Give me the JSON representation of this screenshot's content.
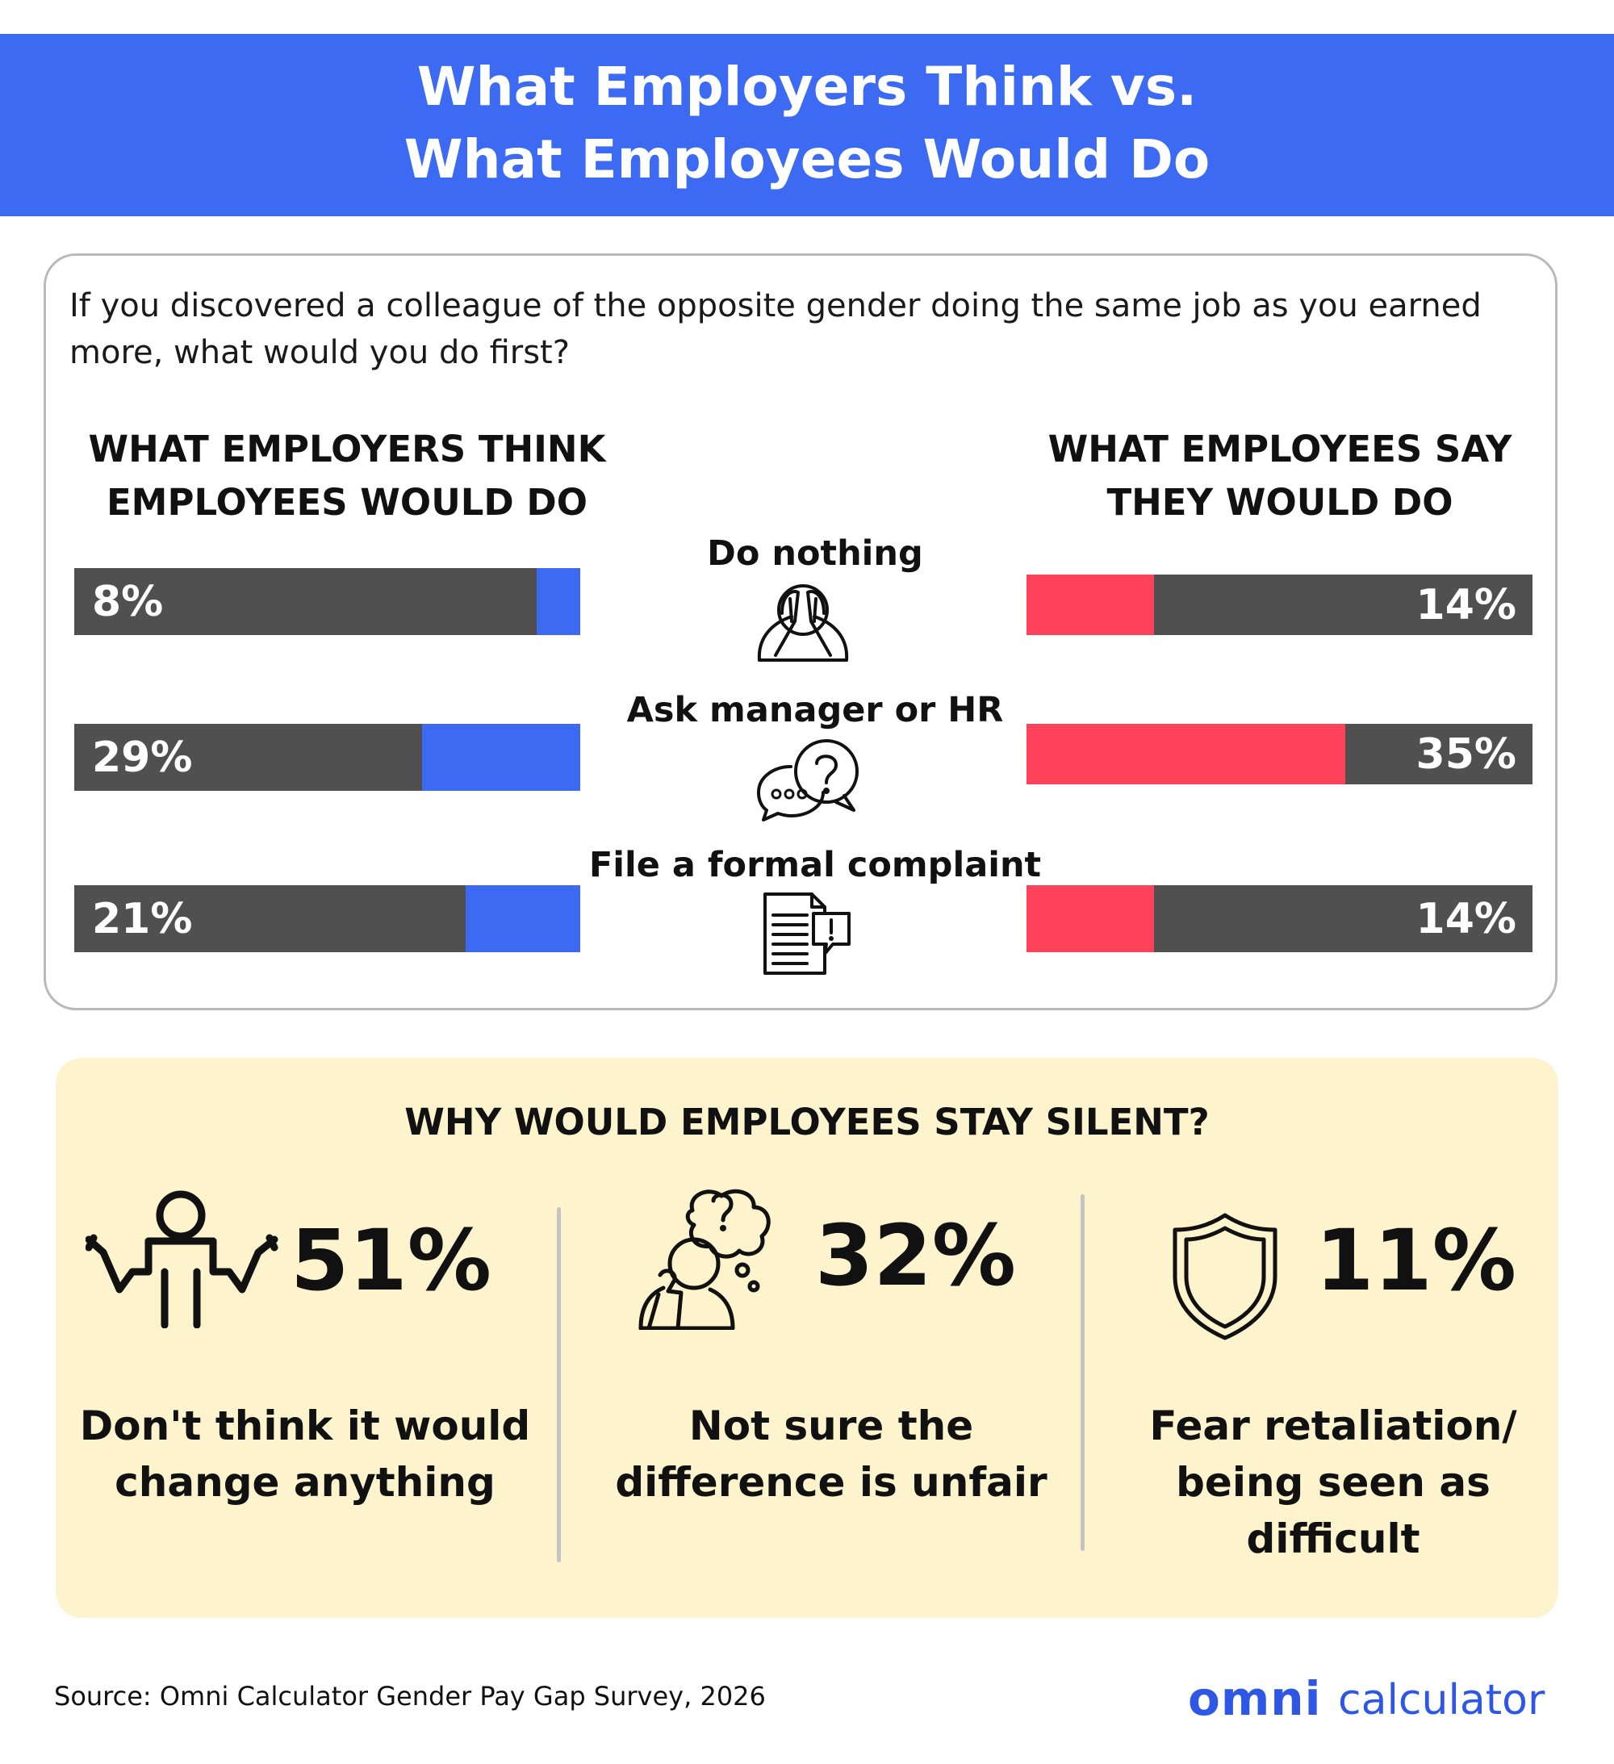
{
  "header": {
    "title_line1": "What Employers Think vs.",
    "title_line2": "What Employees Would Do"
  },
  "question": "If you discovered a colleague of the opposite gender doing the same job as you earned more, what would you do first?",
  "columns": {
    "employers_line1": "WHAT EMPLOYERS THINK",
    "employers_line2": "EMPLOYEES WOULD DO",
    "employees_line1": "WHAT EMPLOYEES SAY",
    "employees_line2": "THEY WOULD DO"
  },
  "chart_data": {
    "type": "bar",
    "categories": [
      "Do nothing",
      "Ask manager or HR",
      "File a formal complaint"
    ],
    "series": [
      {
        "name": "WHAT EMPLOYERS THINK EMPLOYEES WOULD DO",
        "values": [
          8,
          29,
          21
        ],
        "labels": [
          "8%",
          "29%",
          "21%"
        ],
        "color": "#3d6af2"
      },
      {
        "name": "WHAT EMPLOYEES SAY THEY WOULD DO",
        "values": [
          14,
          35,
          14
        ],
        "labels": [
          "14%",
          "35%",
          "14%"
        ],
        "color": "#fd4259"
      }
    ],
    "unit": "%",
    "icons": [
      "face-palm-icon",
      "question-chat-icon",
      "complaint-document-icon"
    ]
  },
  "silent": {
    "title": "WHY WOULD EMPLOYEES STAY SILENT?",
    "items": [
      {
        "value": 51,
        "pct": "51%",
        "line1": "Don't think it would",
        "line2": "change anything",
        "line3": "",
        "icon": "shrug-person-icon"
      },
      {
        "value": 32,
        "pct": "32%",
        "line1": "Not sure the",
        "line2": "difference is unfair",
        "line3": "",
        "icon": "thinking-person-icon"
      },
      {
        "value": 11,
        "pct": "11%",
        "line1": "Fear retaliation/",
        "line2": "being seen as",
        "line3": "difficult",
        "icon": "shield-icon"
      }
    ]
  },
  "footer": {
    "source": "Source: Omni Calculator Gender Pay Gap Survey, 2026",
    "logo_mark": "omni",
    "logo_word": "calculator"
  },
  "colors": {
    "brand_blue": "#3d6af2",
    "accent_red": "#fd4259",
    "bar_gray": "#505050",
    "box_cream": "#fdf3cd"
  }
}
